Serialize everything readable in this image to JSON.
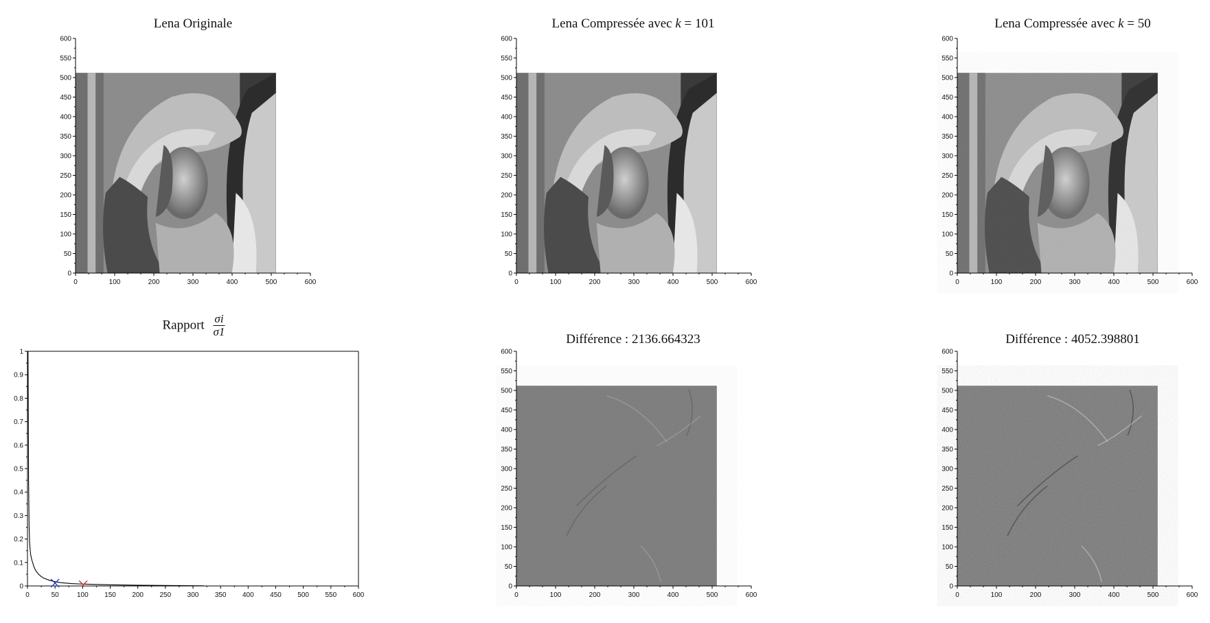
{
  "panels": {
    "original": {
      "title": "Lena Originale"
    },
    "k101": {
      "title_prefix": "Lena Compressée avec ",
      "title_var": "k",
      "title_suffix": " = 101"
    },
    "k50": {
      "title_prefix": "Lena Compressée avec ",
      "title_var": "k",
      "title_suffix": " = 50"
    },
    "ratio": {
      "title_prefix": "Rapport",
      "frac_num": "σi",
      "frac_den": "σ1"
    },
    "diff101": {
      "title": "Différence  :  2136.664323"
    },
    "diff50": {
      "title": "Différence  :  4052.398801"
    }
  },
  "chart_data": [
    {
      "type": "image",
      "title": "Lena Originale",
      "x_ticks": [
        0,
        100,
        200,
        300,
        400,
        500,
        600
      ],
      "y_ticks": [
        0,
        50,
        100,
        150,
        200,
        250,
        300,
        350,
        400,
        450,
        500,
        550,
        600
      ],
      "xlim": [
        0,
        600
      ],
      "ylim": [
        0,
        600
      ],
      "image_extent": [
        0,
        512,
        0,
        512
      ]
    },
    {
      "type": "image",
      "title": "Lena Compressée avec k = 101",
      "x_ticks": [
        0,
        100,
        200,
        300,
        400,
        500,
        600
      ],
      "y_ticks": [
        0,
        50,
        100,
        150,
        200,
        250,
        300,
        350,
        400,
        450,
        500,
        550,
        600
      ],
      "xlim": [
        0,
        600
      ],
      "ylim": [
        0,
        600
      ],
      "image_extent": [
        0,
        512,
        0,
        512
      ]
    },
    {
      "type": "image",
      "title": "Lena Compressée avec k = 50",
      "x_ticks": [
        0,
        100,
        200,
        300,
        400,
        500,
        600
      ],
      "y_ticks": [
        0,
        50,
        100,
        150,
        200,
        250,
        300,
        350,
        400,
        450,
        500,
        550,
        600
      ],
      "xlim": [
        0,
        600
      ],
      "ylim": [
        0,
        600
      ],
      "image_extent": [
        0,
        512,
        0,
        512
      ]
    },
    {
      "type": "line",
      "title": "Rapport σi / σ1",
      "xlim": [
        0,
        600
      ],
      "ylim": [
        0,
        1
      ],
      "x_ticks": [
        0,
        50,
        100,
        150,
        200,
        250,
        300,
        350,
        400,
        450,
        500,
        550,
        600
      ],
      "y_ticks": [
        0,
        0.1,
        0.2,
        0.3,
        0.4,
        0.5,
        0.6,
        0.7,
        0.8,
        0.9,
        1
      ],
      "series": [
        {
          "color": "#000000",
          "x": [
            1,
            2,
            3,
            4,
            5,
            6,
            8,
            10,
            12,
            15,
            20,
            25,
            30,
            40,
            50,
            60,
            80,
            100,
            150,
            200,
            250,
            300,
            320
          ],
          "y": [
            1.0,
            0.45,
            0.25,
            0.18,
            0.15,
            0.13,
            0.11,
            0.095,
            0.08,
            0.065,
            0.05,
            0.04,
            0.033,
            0.024,
            0.018,
            0.014,
            0.01,
            0.008,
            0.005,
            0.003,
            0.002,
            0.001,
            0.0005
          ]
        }
      ],
      "markers": [
        {
          "x": 50,
          "y": 0.012,
          "color": "#1f3fbf",
          "shape": "x"
        },
        {
          "x": 101,
          "y": 0.005,
          "color": "#cc2222",
          "shape": "y"
        }
      ]
    },
    {
      "type": "image",
      "title": "Différence : 2136.664323",
      "x_ticks": [
        0,
        100,
        200,
        300,
        400,
        500,
        600
      ],
      "y_ticks": [
        0,
        50,
        100,
        150,
        200,
        250,
        300,
        350,
        400,
        450,
        500,
        550,
        600
      ],
      "xlim": [
        0,
        600
      ],
      "ylim": [
        0,
        600
      ],
      "image_extent": [
        0,
        512,
        0,
        512
      ]
    },
    {
      "type": "image",
      "title": "Différence : 4052.398801",
      "x_ticks": [
        0,
        100,
        200,
        300,
        400,
        500,
        600
      ],
      "y_ticks": [
        0,
        50,
        100,
        150,
        200,
        250,
        300,
        350,
        400,
        450,
        500,
        550,
        600
      ],
      "xlim": [
        0,
        600
      ],
      "ylim": [
        0,
        600
      ],
      "image_extent": [
        0,
        512,
        0,
        512
      ]
    }
  ]
}
